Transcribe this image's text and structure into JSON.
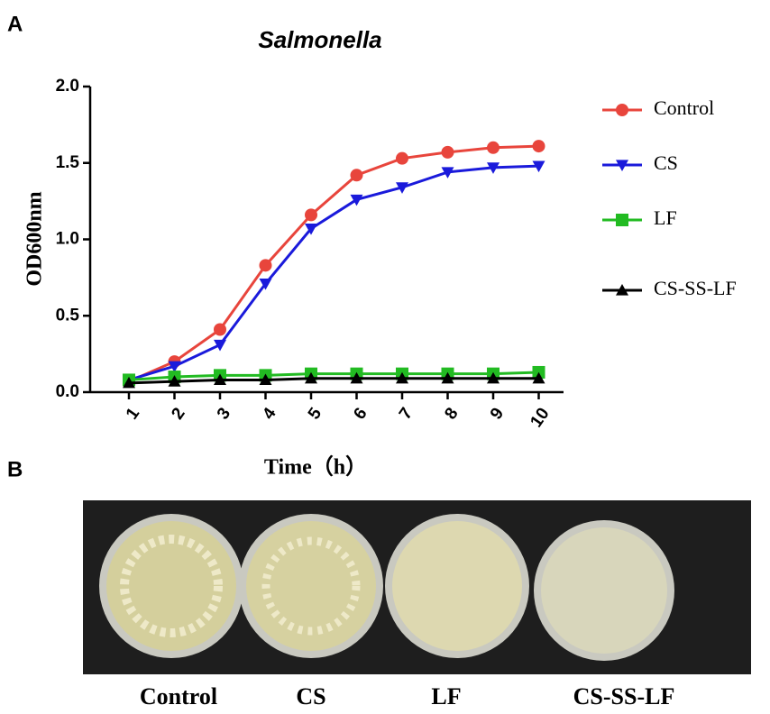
{
  "panel_labels": [
    "A",
    "B"
  ],
  "chart_data": {
    "type": "line",
    "title": "Salmonella",
    "x_label": "Time（h）",
    "y_label": "OD600nm",
    "categories": [
      "1",
      "2",
      "3",
      "4",
      "5",
      "6",
      "7",
      "8",
      "9",
      "10"
    ],
    "ylim": [
      0,
      2
    ],
    "yticks": [
      {
        "value": 0,
        "label": "0.0"
      },
      0.5,
      {
        "value": 1,
        "label": "1.0"
      },
      1.5,
      {
        "value": 2,
        "label": "2.0"
      }
    ],
    "series": [
      {
        "name": "Control",
        "color": "#e8453c",
        "marker": "circle",
        "values": [
          0.07,
          0.2,
          0.41,
          0.83,
          1.16,
          1.42,
          1.53,
          1.57,
          1.6,
          1.61
        ]
      },
      {
        "name": "CS",
        "color": "#1a1adb",
        "marker": "triangle-down",
        "values": [
          0.08,
          0.17,
          0.31,
          0.71,
          1.07,
          1.26,
          1.34,
          1.44,
          1.47,
          1.48
        ]
      },
      {
        "name": "LF",
        "color": "#22bb22",
        "marker": "square",
        "values": [
          0.08,
          0.1,
          0.11,
          0.11,
          0.12,
          0.12,
          0.12,
          0.12,
          0.12,
          0.13
        ]
      },
      {
        "name": "CS-SS-LF",
        "color": "#000000",
        "marker": "triangle-up",
        "values": [
          0.06,
          0.07,
          0.08,
          0.08,
          0.09,
          0.09,
          0.09,
          0.09,
          0.09,
          0.09
        ]
      }
    ]
  },
  "photo": {
    "labels": [
      "Control",
      "CS",
      "LF",
      "CS-SS-LF"
    ]
  }
}
